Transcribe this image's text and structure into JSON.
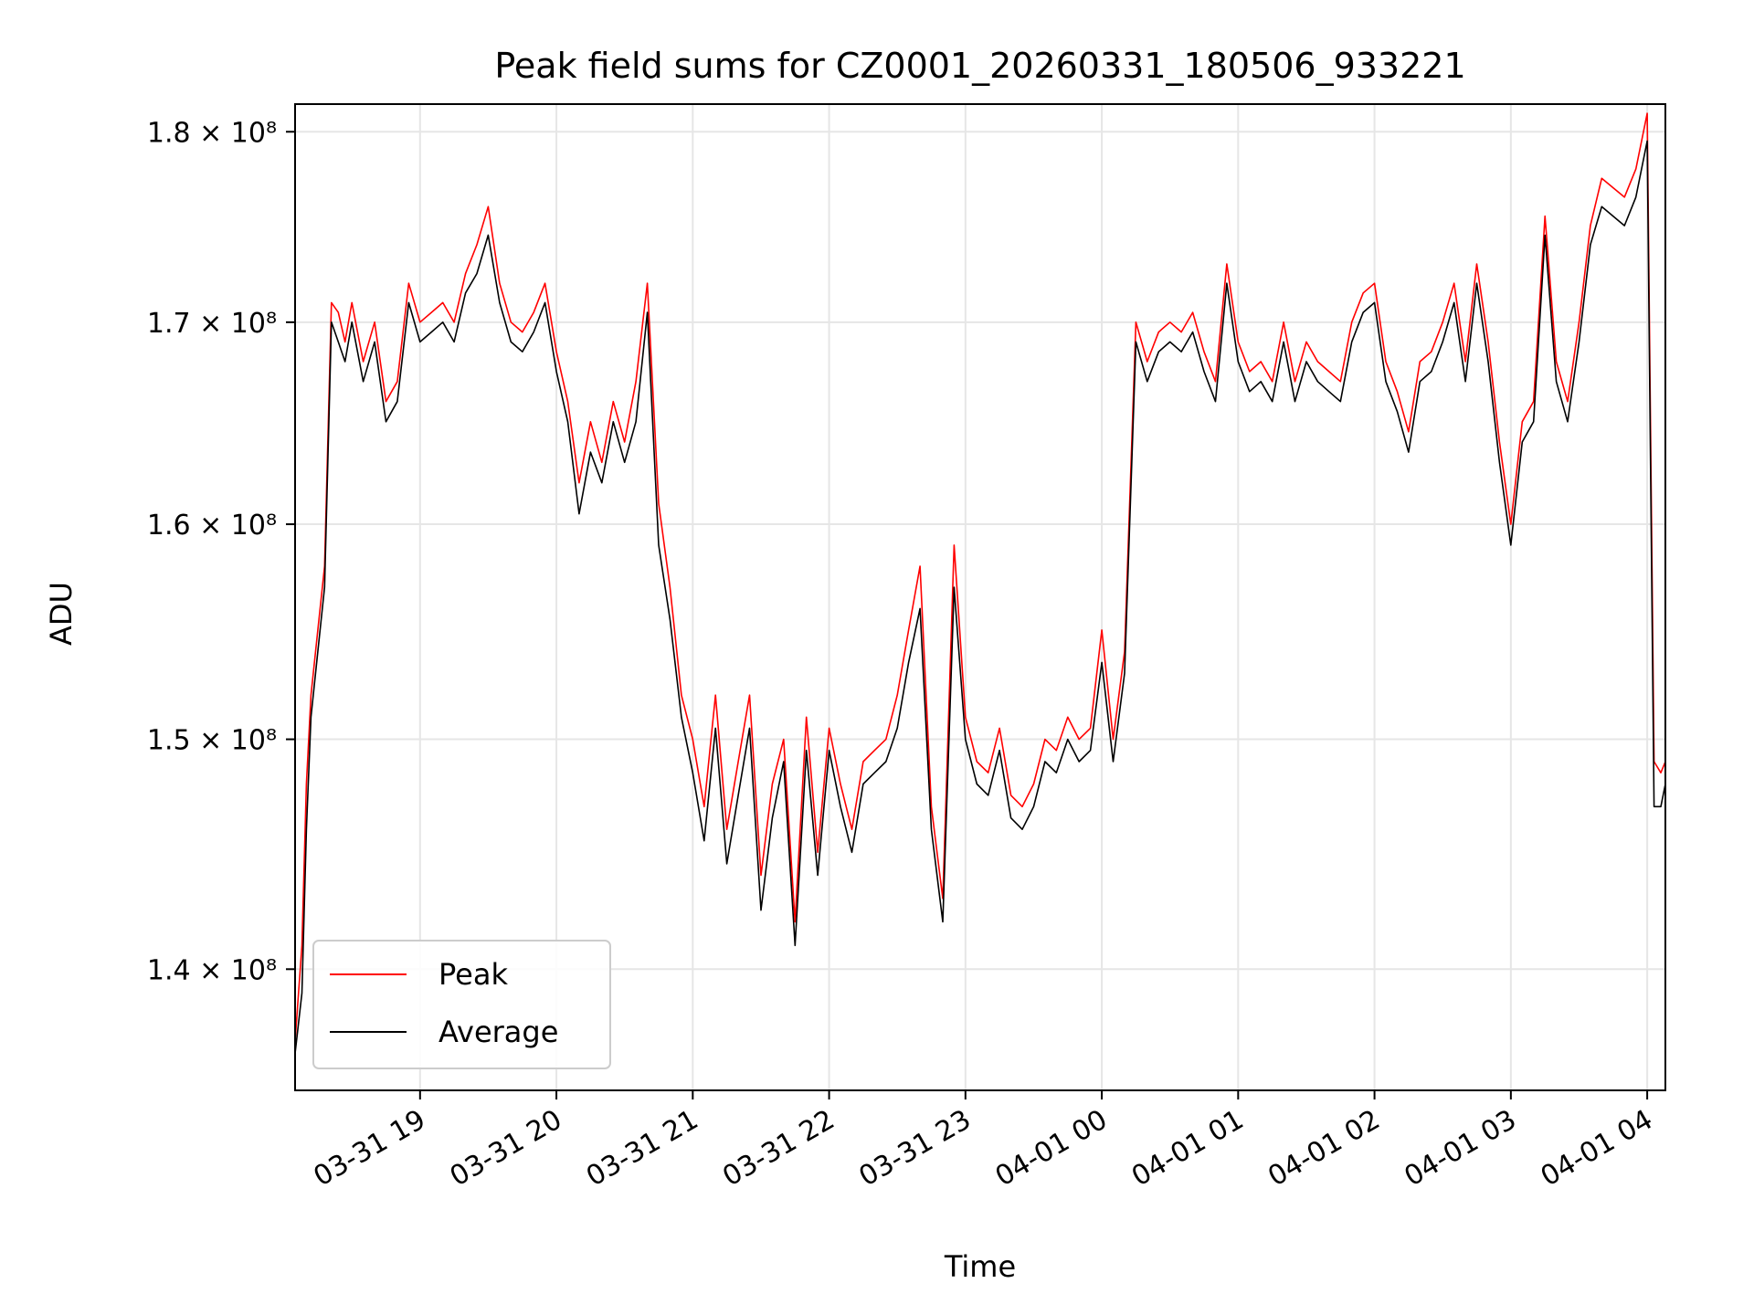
{
  "chart_data": {
    "type": "line",
    "title": "Peak field sums for CZ0001_20260331_180506_933221",
    "xlabel": "Time",
    "ylabel": "ADU",
    "x_ticks": [
      "03-31 19",
      "03-31 20",
      "03-31 21",
      "03-31 22",
      "03-31 23",
      "04-01 00",
      "04-01 01",
      "04-01 02",
      "04-01 03",
      "04-01 04"
    ],
    "y_ticks": [
      {
        "value": 140000000,
        "label": "1.4 × 10⁸"
      },
      {
        "value": 150000000,
        "label": "1.5 × 10⁸"
      },
      {
        "value": 160000000,
        "label": "1.6 × 10⁸"
      },
      {
        "value": 170000000,
        "label": "1.7 × 10⁸"
      },
      {
        "value": 180000000,
        "label": "1.8 × 10⁸"
      }
    ],
    "xlim": [
      "2026-03-31 18:05",
      "2026-04-01 04:08"
    ],
    "ylim": [
      135000000,
      181500000
    ],
    "y_scale": "log",
    "grid": true,
    "legend_position": "lower-left",
    "series": [
      {
        "name": "Peak",
        "color": "#ff0000",
        "x": [
          "18:05",
          "18:08",
          "18:10",
          "18:12",
          "18:15",
          "18:18",
          "18:21",
          "18:24",
          "18:27",
          "18:30",
          "18:35",
          "18:40",
          "18:45",
          "18:50",
          "18:55",
          "19:00",
          "19:05",
          "19:10",
          "19:15",
          "19:20",
          "19:25",
          "19:30",
          "19:35",
          "19:40",
          "19:45",
          "19:50",
          "19:55",
          "20:00",
          "20:05",
          "20:10",
          "20:15",
          "20:20",
          "20:25",
          "20:30",
          "20:35",
          "20:40",
          "20:45",
          "20:50",
          "20:55",
          "21:00",
          "21:05",
          "21:10",
          "21:15",
          "21:20",
          "21:25",
          "21:30",
          "21:35",
          "21:40",
          "21:45",
          "21:50",
          "21:55",
          "22:00",
          "22:05",
          "22:10",
          "22:15",
          "22:20",
          "22:25",
          "22:30",
          "22:35",
          "22:40",
          "22:45",
          "22:50",
          "22:55",
          "23:00",
          "23:05",
          "23:10",
          "23:15",
          "23:20",
          "23:25",
          "23:30",
          "23:35",
          "23:40",
          "23:45",
          "23:50",
          "23:55",
          "00:00",
          "00:05",
          "00:10",
          "00:15",
          "00:20",
          "00:25",
          "00:30",
          "00:35",
          "00:40",
          "00:45",
          "00:50",
          "00:55",
          "01:00",
          "01:05",
          "01:10",
          "01:15",
          "01:20",
          "01:25",
          "01:30",
          "01:35",
          "01:40",
          "01:45",
          "01:50",
          "01:55",
          "02:00",
          "02:05",
          "02:10",
          "02:15",
          "02:20",
          "02:25",
          "02:30",
          "02:35",
          "02:40",
          "02:45",
          "02:50",
          "02:55",
          "03:00",
          "03:05",
          "03:10",
          "03:15",
          "03:20",
          "03:25",
          "03:30",
          "03:35",
          "03:40",
          "03:45",
          "03:50",
          "03:55",
          "04:00",
          "04:03",
          "04:06",
          "04:08"
        ],
        "values": [
          137.0,
          141.0,
          148.0,
          152.0,
          155.0,
          158.0,
          171.0,
          170.5,
          169.0,
          171.0,
          168.0,
          170.0,
          166.0,
          167.0,
          172.0,
          170.0,
          170.5,
          171.0,
          170.0,
          172.5,
          174.0,
          176.0,
          172.0,
          170.0,
          169.5,
          170.5,
          172.0,
          168.5,
          166.0,
          162.0,
          165.0,
          163.0,
          166.0,
          164.0,
          167.0,
          172.0,
          161.0,
          157.0,
          152.0,
          150.0,
          147.0,
          152.0,
          146.0,
          149.0,
          152.0,
          144.0,
          148.0,
          150.0,
          142.0,
          151.0,
          145.0,
          150.5,
          148.0,
          146.0,
          149.0,
          149.5,
          150.0,
          152.0,
          155.0,
          158.0,
          147.0,
          143.0,
          159.0,
          151.0,
          149.0,
          148.5,
          150.5,
          147.5,
          147.0,
          148.0,
          150.0,
          149.5,
          151.0,
          150.0,
          150.5,
          155.0,
          150.0,
          154.0,
          170.0,
          168.0,
          169.5,
          170.0,
          169.5,
          170.5,
          168.5,
          167.0,
          173.0,
          169.0,
          167.5,
          168.0,
          167.0,
          170.0,
          167.0,
          169.0,
          168.0,
          167.5,
          167.0,
          170.0,
          171.5,
          172.0,
          168.0,
          166.5,
          164.5,
          168.0,
          168.5,
          170.0,
          172.0,
          168.0,
          173.0,
          169.0,
          164.0,
          160.0,
          165.0,
          166.0,
          175.5,
          168.0,
          166.0,
          170.0,
          175.0,
          177.5,
          177.0,
          176.5,
          178.0,
          181.0,
          149.0,
          148.5,
          149.0
        ]
      },
      {
        "name": "Average",
        "color": "#000000",
        "x": [
          "18:05",
          "18:08",
          "18:10",
          "18:12",
          "18:15",
          "18:18",
          "18:21",
          "18:24",
          "18:27",
          "18:30",
          "18:35",
          "18:40",
          "18:45",
          "18:50",
          "18:55",
          "19:00",
          "19:05",
          "19:10",
          "19:15",
          "19:20",
          "19:25",
          "19:30",
          "19:35",
          "19:40",
          "19:45",
          "19:50",
          "19:55",
          "20:00",
          "20:05",
          "20:10",
          "20:15",
          "20:20",
          "20:25",
          "20:30",
          "20:35",
          "20:40",
          "20:45",
          "20:50",
          "20:55",
          "21:00",
          "21:05",
          "21:10",
          "21:15",
          "21:20",
          "21:25",
          "21:30",
          "21:35",
          "21:40",
          "21:45",
          "21:50",
          "21:55",
          "22:00",
          "22:05",
          "22:10",
          "22:15",
          "22:20",
          "22:25",
          "22:30",
          "22:35",
          "22:40",
          "22:45",
          "22:50",
          "22:55",
          "23:00",
          "23:05",
          "23:10",
          "23:15",
          "23:20",
          "23:25",
          "23:30",
          "23:35",
          "23:40",
          "23:45",
          "23:50",
          "23:55",
          "00:00",
          "00:05",
          "00:10",
          "00:15",
          "00:20",
          "00:25",
          "00:30",
          "00:35",
          "00:40",
          "00:45",
          "00:50",
          "00:55",
          "01:00",
          "01:05",
          "01:10",
          "01:15",
          "01:20",
          "01:25",
          "01:30",
          "01:35",
          "01:40",
          "01:45",
          "01:50",
          "01:55",
          "02:00",
          "02:05",
          "02:10",
          "02:15",
          "02:20",
          "02:25",
          "02:30",
          "02:35",
          "02:40",
          "02:45",
          "02:50",
          "02:55",
          "03:00",
          "03:05",
          "03:10",
          "03:15",
          "03:20",
          "03:25",
          "03:30",
          "03:35",
          "03:40",
          "03:45",
          "03:50",
          "03:55",
          "04:00",
          "04:03",
          "04:06",
          "04:08"
        ],
        "values": [
          136.5,
          139.0,
          146.0,
          151.0,
          154.0,
          157.0,
          170.0,
          169.0,
          168.0,
          170.0,
          167.0,
          169.0,
          165.0,
          166.0,
          171.0,
          169.0,
          169.5,
          170.0,
          169.0,
          171.5,
          172.5,
          174.5,
          171.0,
          169.0,
          168.5,
          169.5,
          171.0,
          167.5,
          165.0,
          160.5,
          163.5,
          162.0,
          165.0,
          163.0,
          165.0,
          170.5,
          159.0,
          155.5,
          151.0,
          148.5,
          145.5,
          150.5,
          144.5,
          147.5,
          150.5,
          142.5,
          146.5,
          149.0,
          141.0,
          149.5,
          144.0,
          149.5,
          147.0,
          145.0,
          148.0,
          148.5,
          149.0,
          150.5,
          153.5,
          156.0,
          146.0,
          142.0,
          157.0,
          150.0,
          148.0,
          147.5,
          149.5,
          146.5,
          146.0,
          147.0,
          149.0,
          148.5,
          150.0,
          149.0,
          149.5,
          153.5,
          149.0,
          153.0,
          169.0,
          167.0,
          168.5,
          169.0,
          168.5,
          169.5,
          167.5,
          166.0,
          172.0,
          168.0,
          166.5,
          167.0,
          166.0,
          169.0,
          166.0,
          168.0,
          167.0,
          166.5,
          166.0,
          169.0,
          170.5,
          171.0,
          167.0,
          165.5,
          163.5,
          167.0,
          167.5,
          169.0,
          171.0,
          167.0,
          172.0,
          168.0,
          163.0,
          159.0,
          164.0,
          165.0,
          174.5,
          167.0,
          165.0,
          169.0,
          174.0,
          176.0,
          175.5,
          175.0,
          176.5,
          179.5,
          147.0,
          147.0,
          148.0
        ]
      }
    ],
    "value_unit_multiplier": 1000000
  }
}
